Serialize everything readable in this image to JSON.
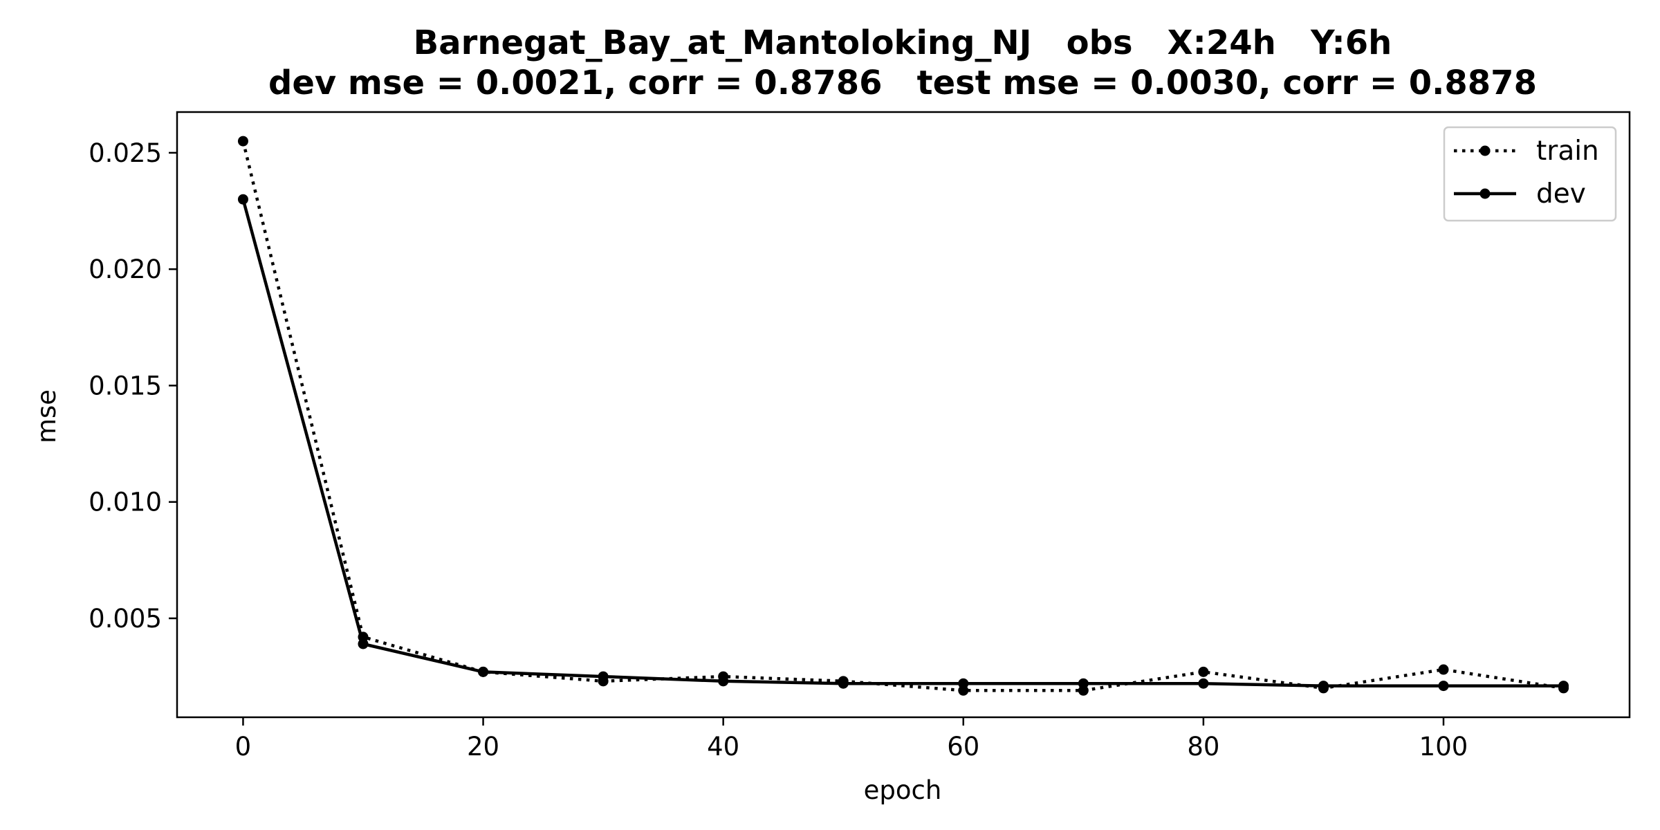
{
  "chart_data": {
    "type": "line",
    "title_line1": "Barnegat_Bay_at_Mantoloking_NJ   obs   X:24h   Y:6h",
    "title_line2": "dev mse = 0.0021, corr = 0.8786   test mse = 0.0030, corr = 0.8878",
    "xlabel": "epoch",
    "ylabel": "mse",
    "xlim": [
      -5.5,
      115.5
    ],
    "ylim": [
      0.00075,
      0.02675
    ],
    "x_ticks": [
      0,
      20,
      40,
      60,
      80,
      100
    ],
    "x_tick_labels": [
      "0",
      "20",
      "40",
      "60",
      "80",
      "100"
    ],
    "y_ticks": [
      0.005,
      0.01,
      0.015,
      0.02,
      0.025
    ],
    "y_tick_labels": [
      "0.005",
      "0.010",
      "0.015",
      "0.020",
      "0.025"
    ],
    "grid": false,
    "legend_position": "top-right",
    "series": [
      {
        "name": "train",
        "style": "dotted",
        "color": "#000000",
        "x": [
          0,
          10,
          20,
          30,
          40,
          50,
          60,
          70,
          80,
          90,
          100,
          110
        ],
        "y": [
          0.0255,
          0.0042,
          0.0027,
          0.0023,
          0.0025,
          0.0023,
          0.0019,
          0.0019,
          0.0027,
          0.002,
          0.0028,
          0.002
        ]
      },
      {
        "name": "dev",
        "style": "solid",
        "color": "#000000",
        "x": [
          0,
          10,
          20,
          30,
          40,
          50,
          60,
          70,
          80,
          90,
          100,
          110
        ],
        "y": [
          0.023,
          0.0039,
          0.0027,
          0.0025,
          0.0023,
          0.0022,
          0.0022,
          0.0022,
          0.0022,
          0.0021,
          0.0021,
          0.0021
        ]
      }
    ]
  }
}
